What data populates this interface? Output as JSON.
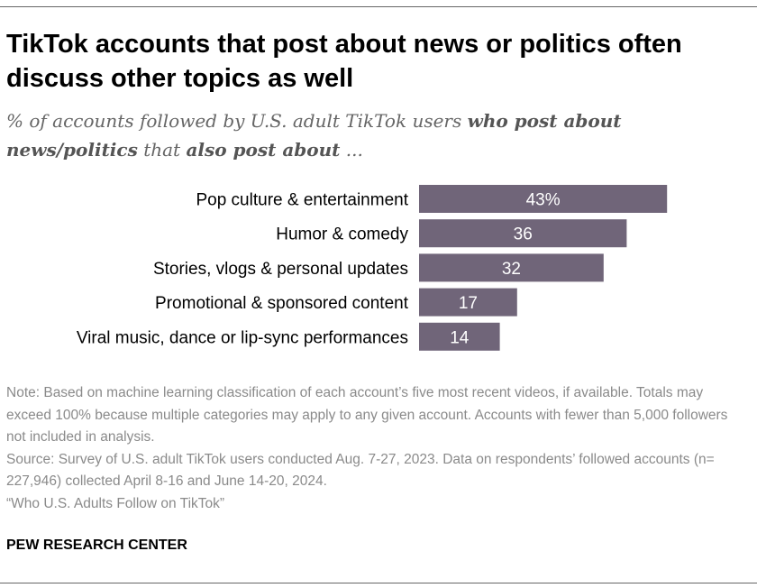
{
  "header": {
    "title": "TikTok accounts that post about news or politics often discuss other topics as well"
  },
  "subtitle": {
    "part1": "% of accounts followed by U.S. adult TikTok users ",
    "bold1": "who post about news/politics",
    "part2": " that ",
    "bold2": "also post about",
    "part3": " ..."
  },
  "chart_data": {
    "type": "bar",
    "orientation": "horizontal",
    "categories": [
      "Pop culture & entertainment",
      "Humor & comedy",
      "Stories, vlogs & personal updates",
      "Promotional & sponsored content",
      "Viral music, dance or lip-sync performances"
    ],
    "values": [
      43,
      36,
      32,
      17,
      14
    ],
    "value_labels": [
      "43%",
      "36",
      "32",
      "17",
      "14"
    ],
    "xlim": [
      0,
      100
    ],
    "bar_color": "#706579",
    "label_color": "#ffffff",
    "title": "",
    "xlabel": "",
    "ylabel": ""
  },
  "notes": {
    "note": "Note: Based on machine learning classification of each account’s five most recent videos, if available. Totals may exceed 100% because multiple categories may apply to any given account. Accounts with fewer than 5,000 followers not included in analysis.",
    "source": "Source: Survey of U.S. adult TikTok users conducted Aug. 7-27, 2023. Data on respondents’ followed accounts (n= 227,946) collected April 8-16 and June 14-20, 2024.",
    "report": "“Who U.S. Adults Follow on TikTok”"
  },
  "footer": {
    "org": "PEW RESEARCH CENTER"
  }
}
